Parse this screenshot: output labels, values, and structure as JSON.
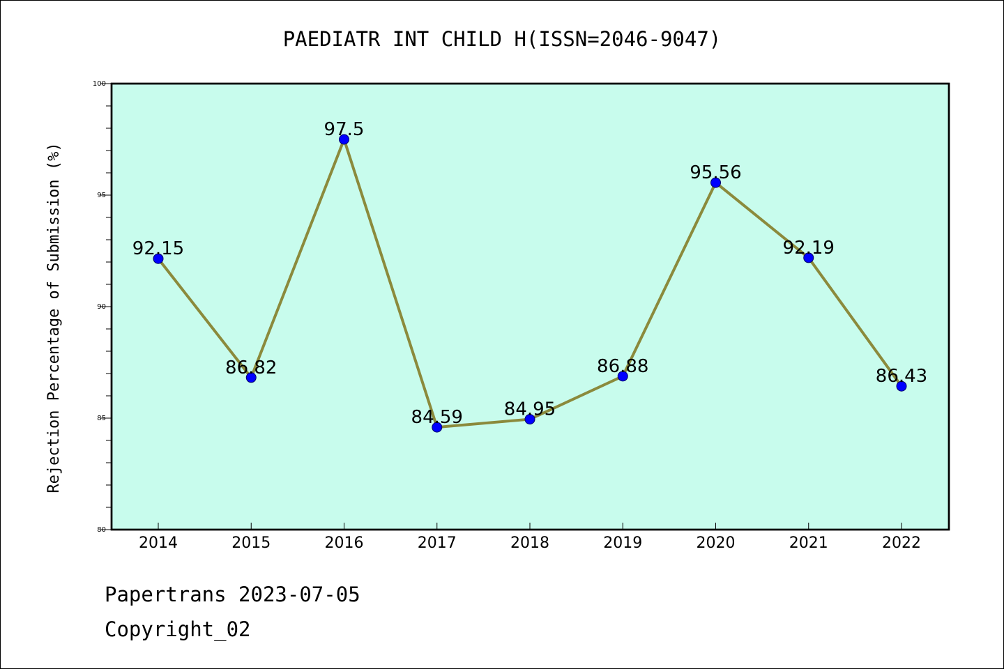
{
  "chart_data": {
    "type": "line",
    "title": "PAEDIATR INT CHILD H(ISSN=2046-9047)",
    "xlabel": "",
    "ylabel": "Rejection Percentage of Submission (%)",
    "categories": [
      "2014",
      "2015",
      "2016",
      "2017",
      "2018",
      "2019",
      "2020",
      "2021",
      "2022"
    ],
    "values": [
      92.15,
      86.82,
      97.5,
      84.59,
      84.95,
      86.88,
      95.56,
      92.19,
      86.43
    ],
    "data_labels": [
      "92.15",
      "86.82",
      "97.5",
      "84.59",
      "84.95",
      "86.88",
      "95.56",
      "92.19",
      "86.43"
    ],
    "ylim": [
      80,
      100
    ],
    "yticks": [
      80,
      85,
      90,
      95,
      100
    ],
    "ytick_labels": [
      "80",
      "85",
      "90",
      "95",
      "100"
    ],
    "grid": false,
    "legend": "none",
    "colors": {
      "plot_background": "#c8fced",
      "line": "#8b8a3c",
      "marker": "#0000ff",
      "axis": "#000000"
    }
  },
  "footer": {
    "line1": "Papertrans 2023-07-05",
    "line2": "Copyright_02"
  }
}
